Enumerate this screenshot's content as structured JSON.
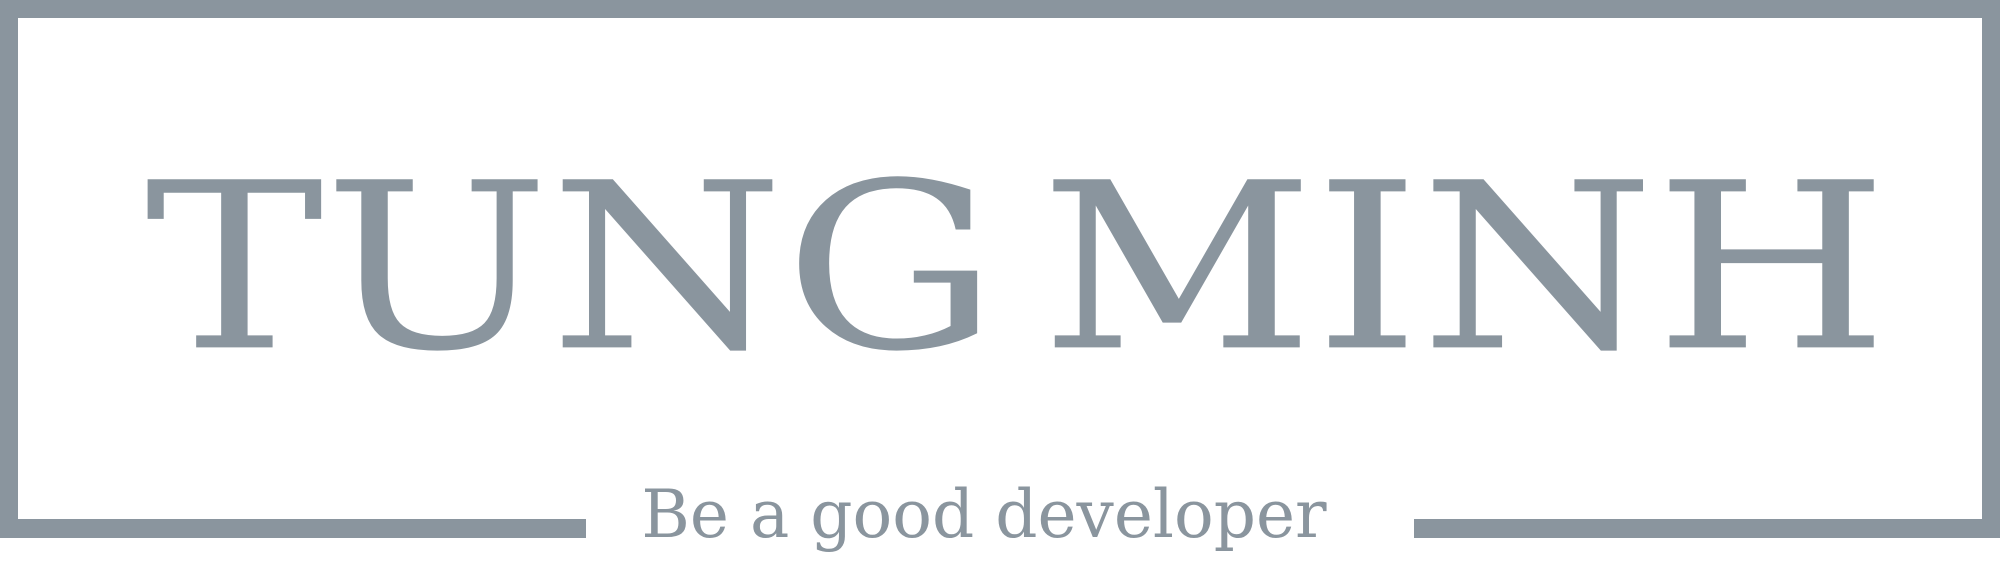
{
  "brand": {
    "name_left": "TUNG",
    "name_right": "MINH",
    "tagline": "Be a good developer",
    "color": "#8a959e"
  }
}
